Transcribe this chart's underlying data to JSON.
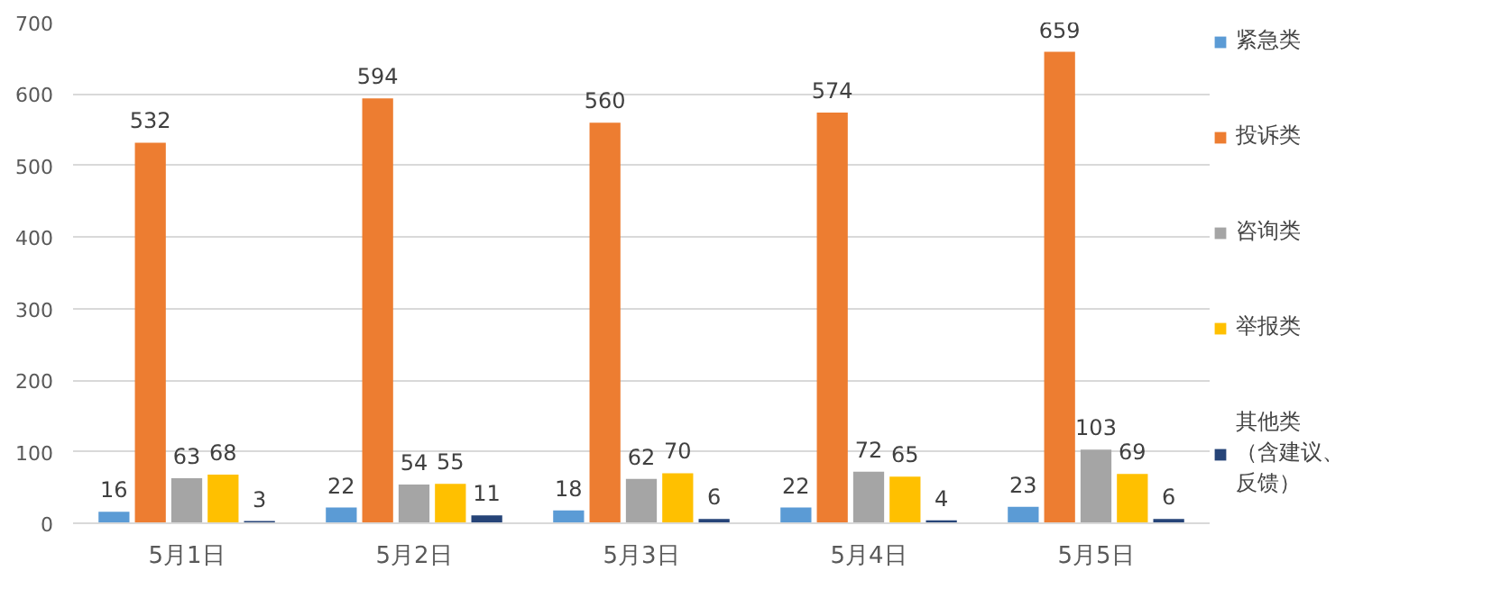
{
  "chart_data": {
    "type": "bar",
    "categories": [
      "5月1日",
      "5月2日",
      "5月3日",
      "5月4日",
      "5月5日"
    ],
    "series": [
      {
        "name": "紧急类",
        "color": "#5b9bd5",
        "values": [
          16,
          22,
          18,
          22,
          23
        ]
      },
      {
        "name": "投诉类",
        "color": "#ed7d31",
        "values": [
          532,
          594,
          560,
          574,
          659
        ]
      },
      {
        "name": "咨询类",
        "color": "#a5a5a5",
        "values": [
          63,
          54,
          62,
          72,
          103
        ]
      },
      {
        "name": "举报类",
        "color": "#ffc000",
        "values": [
          68,
          55,
          70,
          65,
          69
        ]
      },
      {
        "name": "其他类（含建议、反馈）",
        "color": "#264478",
        "values": [
          3,
          11,
          6,
          4,
          6
        ]
      }
    ],
    "ylim": [
      0,
      700
    ],
    "yticks": [
      0,
      100,
      200,
      300,
      400,
      500,
      600,
      700
    ],
    "grid": "y",
    "legend": "right",
    "data_labels": true
  }
}
